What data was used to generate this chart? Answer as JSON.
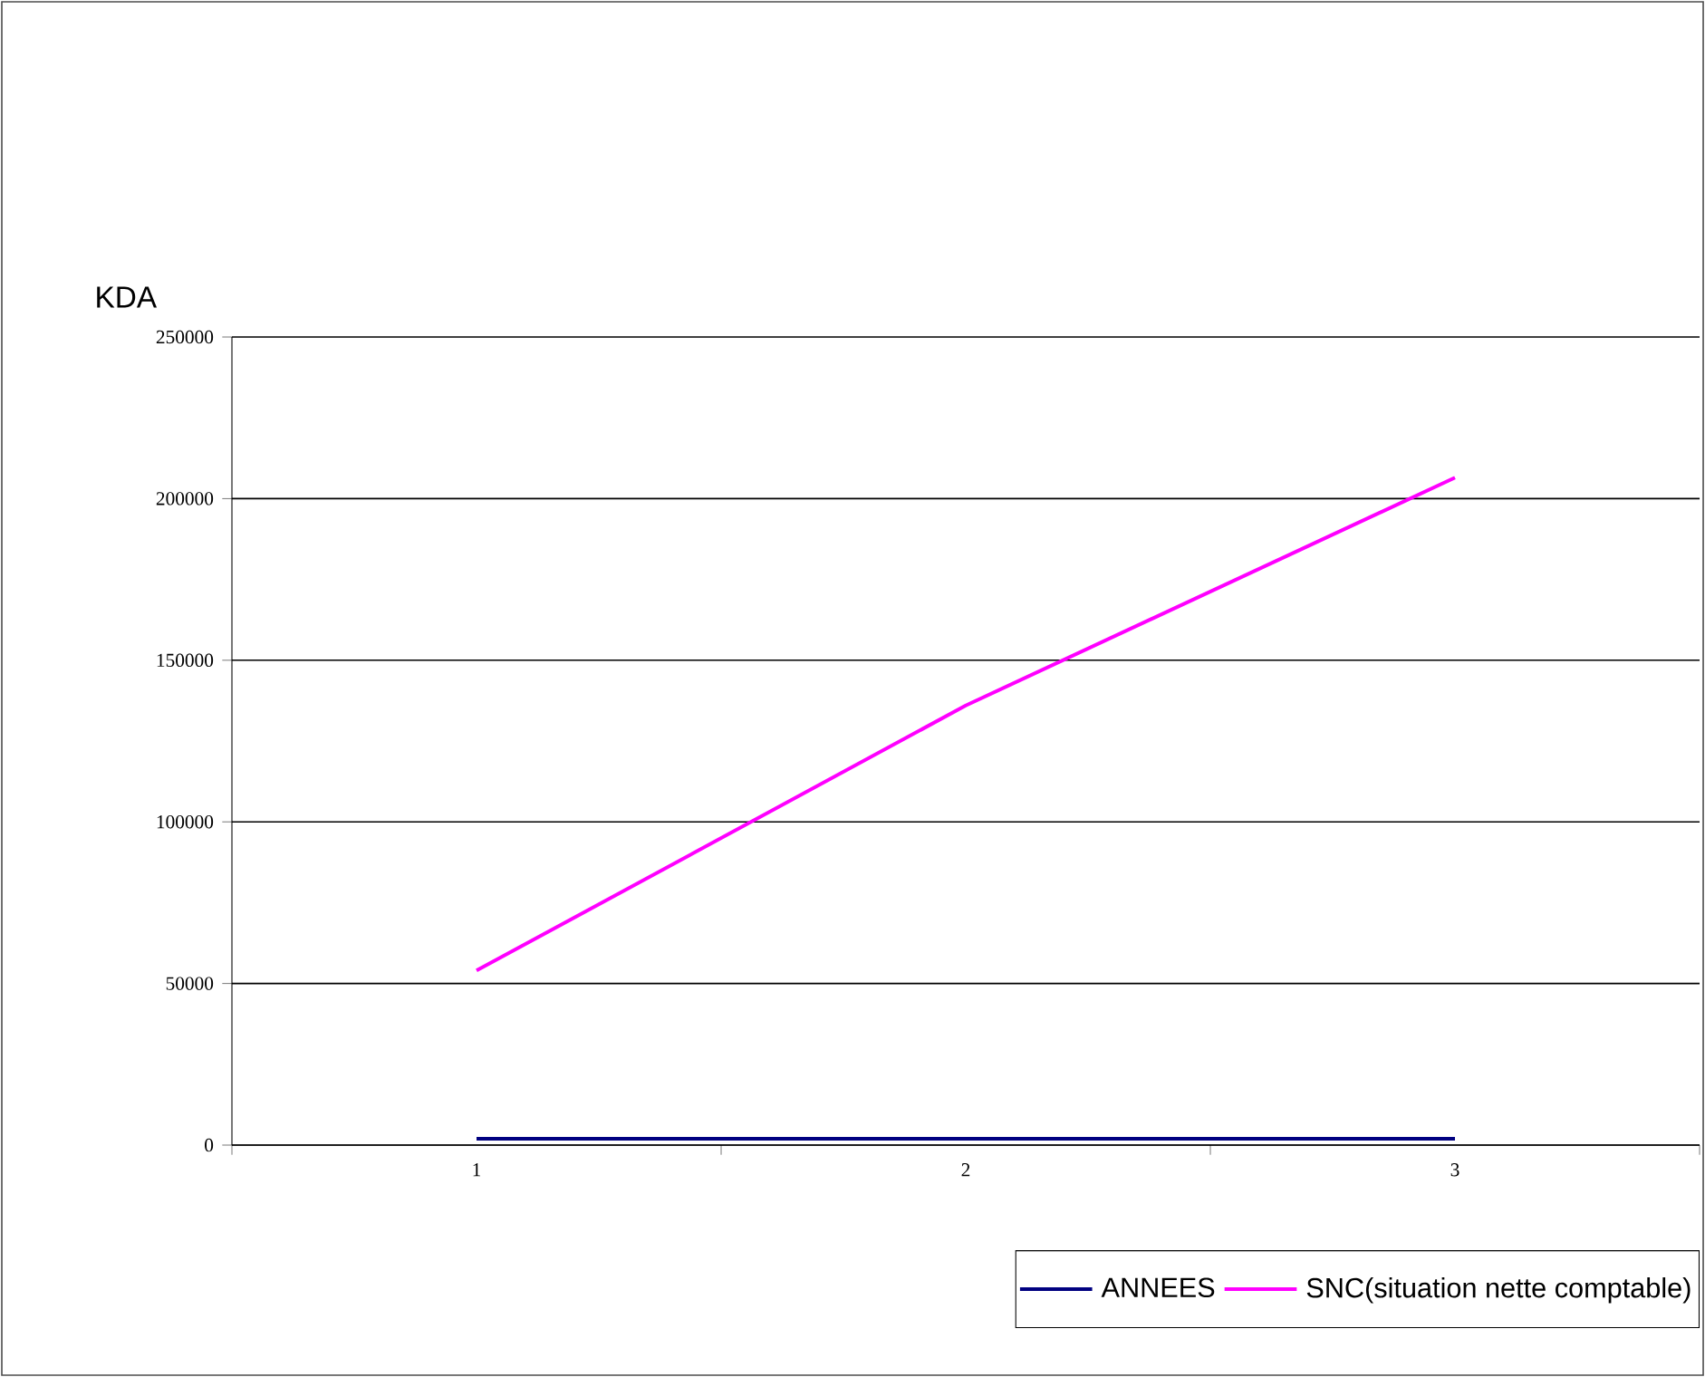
{
  "chart_data": {
    "type": "line",
    "ylabel": "KDA",
    "categories": [
      "1",
      "2",
      "3"
    ],
    "series": [
      {
        "name": "ANNEES",
        "color": "#000080",
        "values": [
          2000,
          2000,
          2000
        ]
      },
      {
        "name": "SNC(situation nette comptable)",
        "color": "#ff00ff",
        "values": [
          54000,
          136000,
          206500
        ]
      }
    ],
    "ylim": [
      0,
      250000
    ],
    "yticks": [
      0,
      50000,
      100000,
      150000,
      200000,
      250000
    ],
    "grid": "y",
    "legend": "bottom right",
    "marker": "none",
    "line_style": "solid"
  }
}
